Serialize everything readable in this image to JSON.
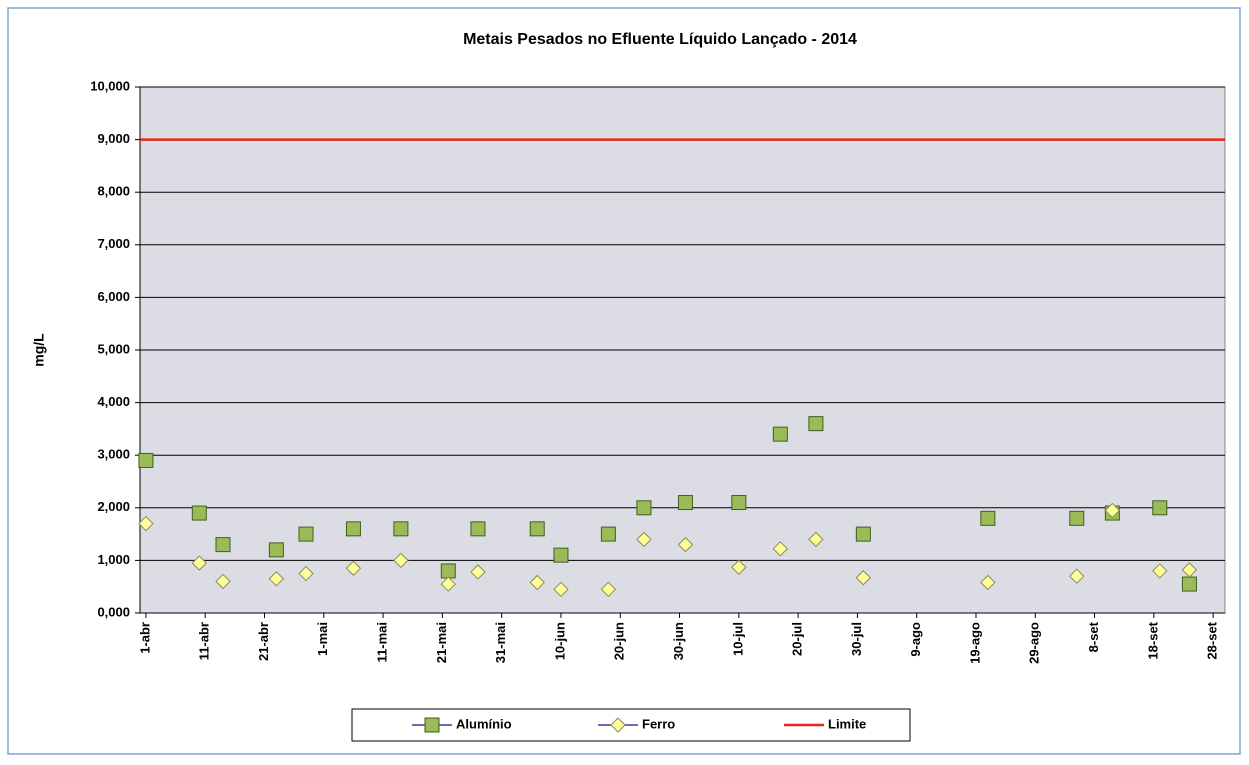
{
  "chart_data": {
    "type": "scatter",
    "title": "Metais Pesados no Efluente Líquido Lançado - 2014",
    "y_label": "mg/L",
    "x": [
      "2014-04-01",
      "2014-04-10",
      "2014-04-14",
      "2014-04-23",
      "2014-04-28",
      "2014-05-06",
      "2014-05-14",
      "2014-05-22",
      "2014-05-27",
      "2014-06-06",
      "2014-06-10",
      "2014-06-18",
      "2014-06-24",
      "2014-07-01",
      "2014-07-10",
      "2014-07-17",
      "2014-07-23",
      "2014-07-31",
      "2014-08-21",
      "2014-09-05",
      "2014-09-11",
      "2014-09-19",
      "2014-09-24"
    ],
    "series": [
      {
        "name": "Alumínio",
        "color": "#9bbb59",
        "marker": "square",
        "values": [
          2.9,
          1.9,
          1.3,
          1.2,
          1.5,
          1.6,
          1.6,
          0.8,
          1.6,
          1.6,
          1.1,
          1.5,
          2.0,
          2.1,
          2.1,
          3.4,
          3.6,
          1.5,
          1.8,
          1.8,
          1.9,
          2.0,
          0.55
        ]
      },
      {
        "name": "Ferro",
        "color": "#ffff99",
        "marker": "diamond",
        "values": [
          1.7,
          0.95,
          0.6,
          0.65,
          0.75,
          0.85,
          1.0,
          0.55,
          0.78,
          0.58,
          0.45,
          0.45,
          1.4,
          1.3,
          0.87,
          1.22,
          1.4,
          0.67,
          0.58,
          0.7,
          1.95,
          0.8,
          0.82
        ]
      }
    ],
    "lines": [
      {
        "name": "Limite",
        "color": "#e8251e",
        "value": 9
      }
    ],
    "xlim": [
      "2014-03-31",
      "2014-09-30"
    ],
    "xticks": [
      {
        "value": "2014-04-01",
        "label": "1-abr"
      },
      {
        "value": "2014-04-11",
        "label": "11-abr"
      },
      {
        "value": "2014-04-21",
        "label": "21-abr"
      },
      {
        "value": "2014-05-01",
        "label": "1-mai"
      },
      {
        "value": "2014-05-11",
        "label": "11-mai"
      },
      {
        "value": "2014-05-21",
        "label": "21-mai"
      },
      {
        "value": "2014-05-31",
        "label": "31-mai"
      },
      {
        "value": "2014-06-10",
        "label": "10-jun"
      },
      {
        "value": "2014-06-20",
        "label": "20-jun"
      },
      {
        "value": "2014-06-30",
        "label": "30-jun"
      },
      {
        "value": "2014-07-10",
        "label": "10-jul"
      },
      {
        "value": "2014-07-20",
        "label": "20-jul"
      },
      {
        "value": "2014-07-30",
        "label": "30-jul"
      },
      {
        "value": "2014-08-09",
        "label": "9-ago"
      },
      {
        "value": "2014-08-19",
        "label": "19-ago"
      },
      {
        "value": "2014-08-29",
        "label": "29-ago"
      },
      {
        "value": "2014-09-08",
        "label": "8-set"
      },
      {
        "value": "2014-09-18",
        "label": "18-set"
      },
      {
        "value": "2014-09-28",
        "label": "28-set"
      }
    ],
    "ylim": [
      0,
      10
    ],
    "yticks": [
      {
        "value": 0,
        "label": "0,000"
      },
      {
        "value": 1,
        "label": "1,000"
      },
      {
        "value": 2,
        "label": "2,000"
      },
      {
        "value": 3,
        "label": "3,000"
      },
      {
        "value": 4,
        "label": "4,000"
      },
      {
        "value": 5,
        "label": "5,000"
      },
      {
        "value": 6,
        "label": "6,000"
      },
      {
        "value": 7,
        "label": "7,000"
      },
      {
        "value": 8,
        "label": "8,000"
      },
      {
        "value": 9,
        "label": "9,000"
      },
      {
        "value": 10,
        "label": "10,000"
      }
    ],
    "grid": true,
    "legend": "bottom"
  }
}
